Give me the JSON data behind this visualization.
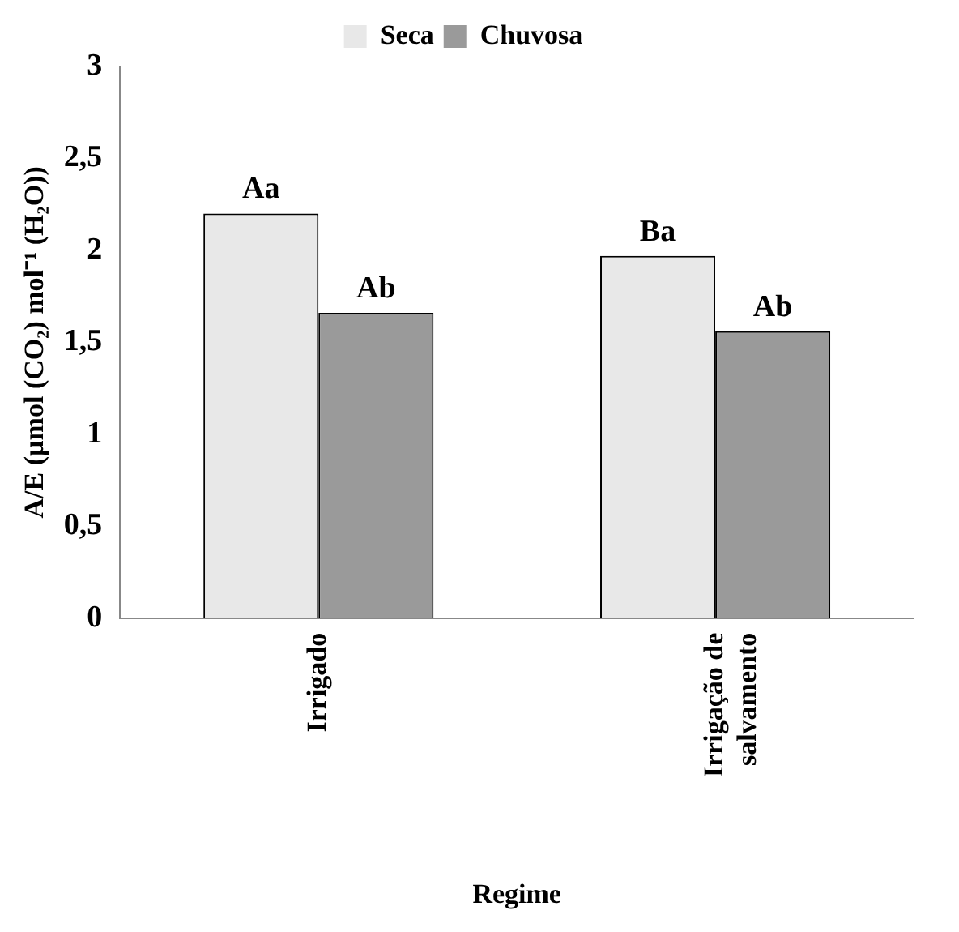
{
  "chart_data": {
    "type": "bar",
    "xlabel": "Regime",
    "ylabel": "A/E (µmol (CO₂) mol⁻¹ (H₂O))",
    "categories": [
      "Irrigado",
      "Irrigação de salvamento"
    ],
    "series": [
      {
        "name": "Seca",
        "color": "#e8e8e8",
        "values": [
          2.2,
          1.97
        ]
      },
      {
        "name": "Chuvosa",
        "color": "#9a9a9a",
        "values": [
          1.66,
          1.56
        ]
      }
    ],
    "annotations": [
      "Aa",
      "Ab",
      "Ba",
      "Ab"
    ],
    "ylim": [
      0,
      3
    ],
    "yticks": [
      0,
      {
        "value": 0.5,
        "label": "0,5"
      },
      1,
      {
        "value": 1.5,
        "label": "1,5"
      },
      2,
      {
        "value": 2.5,
        "label": "2,5"
      },
      3
    ],
    "grid": false,
    "legend": "top"
  }
}
